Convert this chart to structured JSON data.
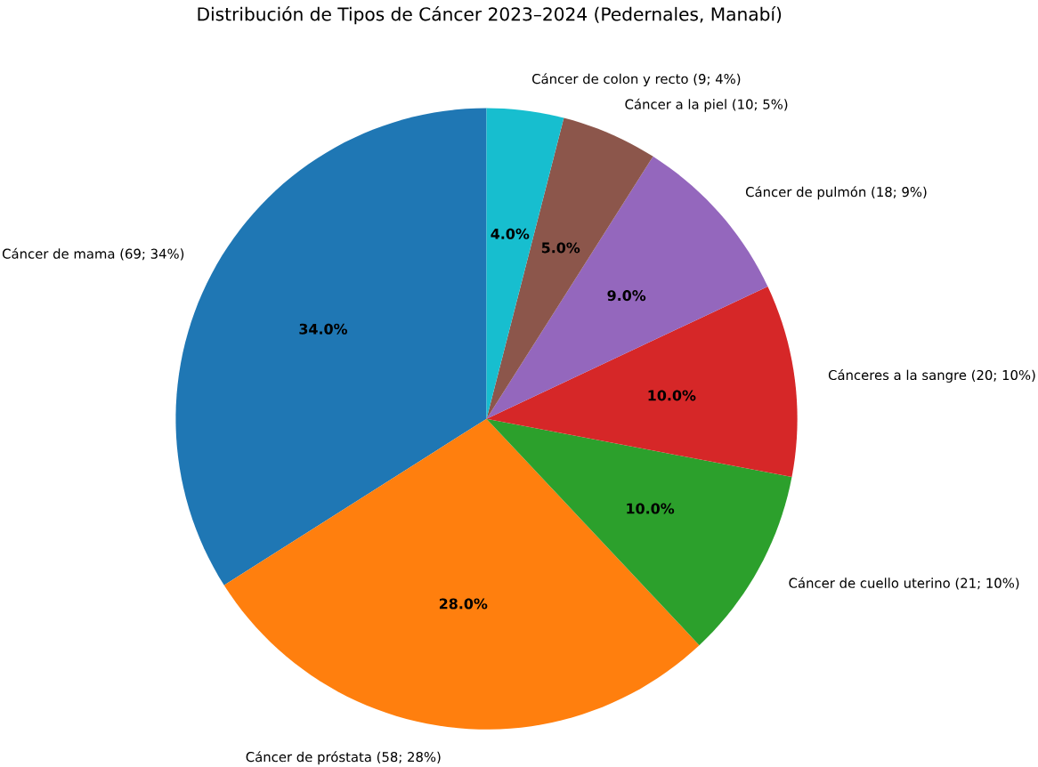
{
  "chart_data": {
    "type": "pie",
    "title": "Distribución de Tipos de Cáncer 2023–2024 (Pedernales, Manabí)",
    "categories": [
      "Cáncer de mama (69; 34%)",
      "Cáncer de próstata (58; 28%)",
      "Cáncer de cuello uterino (21; 10%)",
      "Cánceres a la sangre (20; 10%)",
      "Cáncer de pulmón (18; 9%)",
      "Cáncer a la piel (10; 5%)",
      "Cáncer de colon y recto (9; 4%)"
    ],
    "values": [
      34,
      28,
      10,
      10,
      9,
      5,
      4
    ],
    "value_labels": [
      "34.0%",
      "28.0%",
      "10.0%",
      "10.0%",
      "9.0%",
      "5.0%",
      "4.0%"
    ],
    "colors": [
      "#1f77b4",
      "#ff7f0e",
      "#2ca02c",
      "#d62728",
      "#9467bd",
      "#8c564b",
      "#17becf"
    ]
  }
}
